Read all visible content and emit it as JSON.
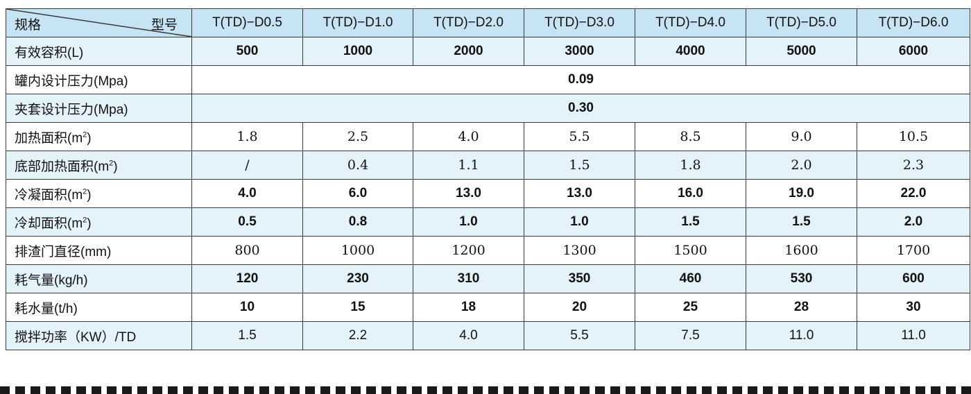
{
  "header": {
    "corner_left": "规格",
    "corner_right": "型号",
    "models": [
      "T(TD)−D0.5",
      "T(TD)−D1.0",
      "T(TD)−D2.0",
      "T(TD)−D3.0",
      "T(TD)−D4.0",
      "T(TD)−D5.0",
      "T(TD)−D6.0"
    ]
  },
  "rows": [
    {
      "label": "有效容积(L)",
      "values": [
        "500",
        "1000",
        "2000",
        "3000",
        "4000",
        "5000",
        "6000"
      ]
    },
    {
      "label": "罐内设计压力(Mpa)",
      "value": "0.09"
    },
    {
      "label": "夹套设计压力(Mpa)",
      "value": "0.30"
    },
    {
      "label_pre": "加热面积(m",
      "label_sup": "2",
      "label_post": ")",
      "values": [
        "1.8",
        "2.5",
        "4.0",
        "5.5",
        "8.5",
        "9.0",
        "10.5"
      ]
    },
    {
      "label_pre": "底部加热面积(m",
      "label_sup": "2",
      "label_post": ")",
      "values": [
        "/",
        "0.4",
        "1.1",
        "1.5",
        "1.8",
        "2.0",
        "2.3"
      ]
    },
    {
      "label_pre": "冷凝面积(m",
      "label_sup": "2",
      "label_post": ")",
      "values": [
        "4.0",
        "6.0",
        "13.0",
        "13.0",
        "16.0",
        "19.0",
        "22.0"
      ]
    },
    {
      "label_pre": "冷却面积(m",
      "label_sup": "2",
      "label_post": ")",
      "values": [
        "0.5",
        "0.8",
        "1.0",
        "1.0",
        "1.5",
        "1.5",
        "2.0"
      ]
    },
    {
      "label": "排渣门直径(mm)",
      "values": [
        "800",
        "1000",
        "1200",
        "1300",
        "1500",
        "1600",
        "1700"
      ]
    },
    {
      "label": "耗气量(kg/h)",
      "values": [
        "120",
        "230",
        "310",
        "350",
        "460",
        "530",
        "600"
      ]
    },
    {
      "label": "耗水量(t/h)",
      "values": [
        "10",
        "15",
        "18",
        "20",
        "25",
        "28",
        "30"
      ]
    },
    {
      "label": "搅拌功率（KW）/TD",
      "values": [
        "1.5",
        "2.2",
        "4.0",
        "5.5",
        "7.5",
        "11.0",
        "11.0"
      ]
    }
  ]
}
